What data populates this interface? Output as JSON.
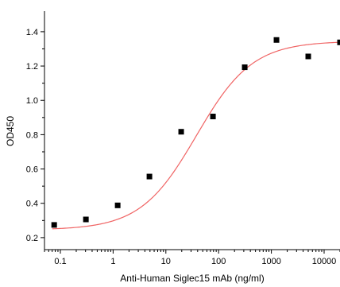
{
  "chart_data": {
    "type": "scatter",
    "title": "",
    "xlabel": "Anti-Human Siglec15 mAb (ng/ml)",
    "ylabel": "OD450",
    "x_scale": "log",
    "xlim": [
      0.05,
      20000
    ],
    "ylim": [
      0.13,
      1.52
    ],
    "x_ticks": [
      0.1,
      1,
      10,
      100,
      1000,
      10000
    ],
    "x_tick_labels": [
      "0.1",
      "1",
      "10",
      "100",
      "1000",
      "10000"
    ],
    "y_ticks": [
      0.2,
      0.4,
      0.6,
      0.8,
      1.0,
      1.2,
      1.4
    ],
    "y_tick_labels": [
      "0.2",
      "0.4",
      "0.6",
      "0.8",
      "1.0",
      "1.2",
      "1.4"
    ],
    "grid": false,
    "series": [
      {
        "marker": "square",
        "color": "#000000",
        "x": [
          0.0763,
          0.305,
          1.22,
          4.88,
          19.5,
          78.1,
          312.5,
          1250,
          5000,
          20000
        ],
        "y": [
          0.274,
          0.306,
          0.388,
          0.556,
          0.817,
          0.906,
          1.193,
          1.352,
          1.256,
          1.338
        ]
      }
    ],
    "fit": {
      "model": "4PL",
      "color": "#f06464",
      "bottom": 0.245,
      "top": 1.345,
      "ec50": 38,
      "hill": 0.82
    }
  }
}
